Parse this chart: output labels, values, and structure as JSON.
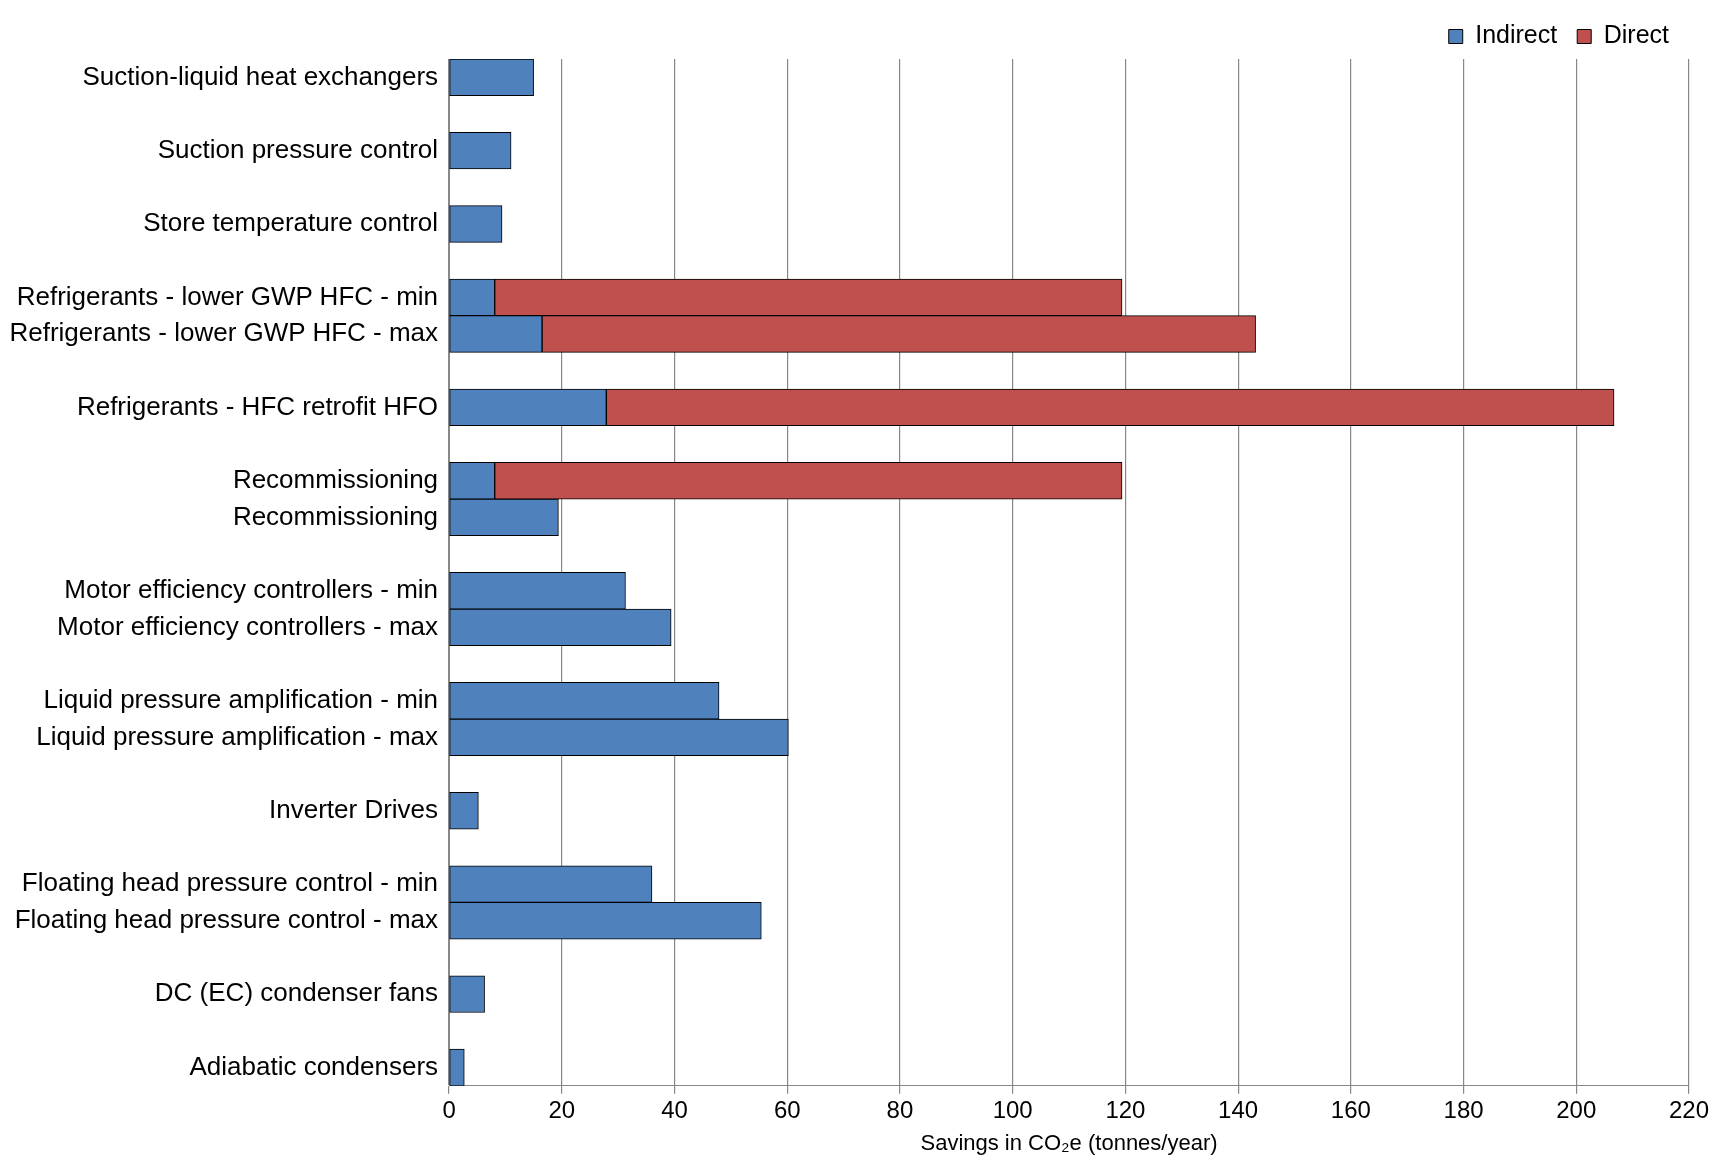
{
  "chart_data": {
    "type": "bar",
    "orientation": "horizontal",
    "stacked": true,
    "categories": [
      "Suction-liquid heat exchangers",
      null,
      "Suction pressure control",
      null,
      "Store temperature control",
      null,
      "Refrigerants - lower GWP HFC - min",
      "Refrigerants - lower GWP HFC - max",
      null,
      "Refrigerants - HFC retrofit HFO",
      null,
      "Recommissioning",
      "Recommissioning",
      null,
      "Motor efficiency controllers - min",
      "Motor efficiency controllers - max",
      null,
      "Liquid pressure amplification - min",
      "Liquid pressure amplification - max",
      null,
      "Inverter Drives",
      null,
      "Floating head pressure control - min",
      "Floating head pressure control - max",
      null,
      "DC (EC) condenser fans",
      null,
      "Adiabatic condensers"
    ],
    "series": [
      {
        "name": "Indirect",
        "color": "#4f81bd",
        "values": [
          15,
          null,
          11,
          null,
          9.4,
          null,
          8.1,
          16.5,
          null,
          27.9,
          null,
          8.1,
          19.4,
          null,
          31.3,
          39.4,
          null,
          47.9,
          60.2,
          null,
          5.2,
          null,
          36,
          55.4,
          null,
          6.3,
          null,
          2.7
        ]
      },
      {
        "name": "Direct",
        "color": "#c0504d",
        "values": [
          null,
          null,
          null,
          null,
          null,
          null,
          111.3,
          126.6,
          null,
          178.8,
          null,
          111.3,
          null,
          null,
          null,
          null,
          null,
          null,
          null,
          null,
          null,
          null,
          null,
          null,
          null,
          null,
          null,
          null
        ]
      }
    ],
    "xlabel": "Savings in CO₂e (tonnes/year)",
    "xlim": [
      0,
      220
    ],
    "xticks": [
      0,
      20,
      40,
      60,
      80,
      100,
      120,
      140,
      160,
      180,
      200,
      220
    ],
    "grid": "x",
    "legend": "top right"
  }
}
